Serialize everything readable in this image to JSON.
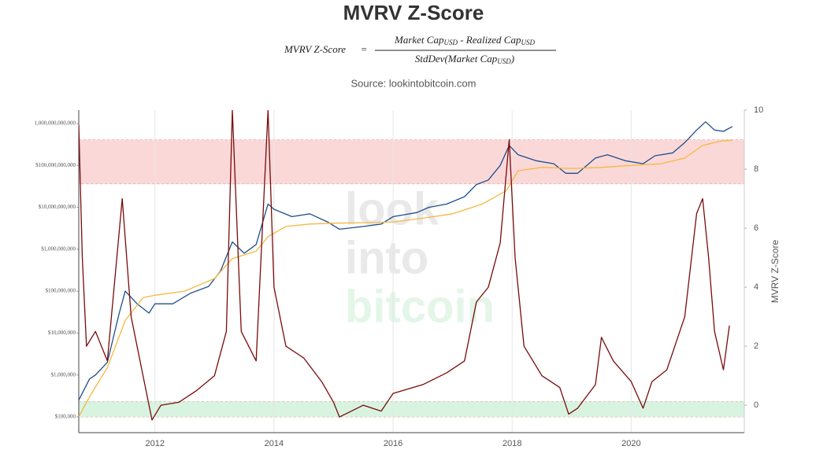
{
  "chart_data": {
    "type": "line",
    "title": "MVRV Z-Score",
    "formula": {
      "lhs": "MVRV Z-Score",
      "equals": "=",
      "numerator": [
        "Market Cap",
        "USD",
        " - Realized Cap",
        "USD"
      ],
      "denominator": [
        "StdDev(Market Cap",
        "USD",
        ")"
      ]
    },
    "subtitle": "Source: lookintobitcoin.com",
    "watermark": [
      "look",
      "into",
      "bitcoin"
    ],
    "y2_label": "MVRV Z-Score",
    "xlim": [
      2010.72,
      2021.9
    ],
    "xticks": [
      2012,
      2014,
      2016,
      2018,
      2020
    ],
    "ylog": true,
    "ylim": [
      42000,
      2090000000000
    ],
    "yticks": [
      {
        "value": 100000,
        "label": "$100,000"
      },
      {
        "value": 1000000,
        "label": "$1,000,000"
      },
      {
        "value": 10000000,
        "label": "$10,000,000"
      },
      {
        "value": 100000000,
        "label": "$100,000,000"
      },
      {
        "value": 1000000000,
        "label": "$1,000,000,000"
      },
      {
        "value": 10000000000,
        "label": "$10,000,000,000"
      },
      {
        "value": 100000000000,
        "label": "$100,000,000,000"
      },
      {
        "value": 1000000000000,
        "label": "1,000,000,000,000"
      }
    ],
    "y2lim": [
      -0.93,
      10
    ],
    "y2ticks": [
      0,
      2,
      4,
      6,
      8,
      10
    ],
    "grid": true,
    "bands": [
      {
        "from": 7.5,
        "to": 9,
        "color": "#f8c8c8",
        "axis": "y2"
      },
      {
        "from": -0.4,
        "to": 0.13,
        "color": "#c8f0d4",
        "axis": "y2"
      }
    ],
    "series": [
      {
        "color": "#1f4e8c",
        "x": [
          2010.72,
          2010.9,
          2011.0,
          2011.2,
          2011.4,
          2011.5,
          2011.7,
          2011.9,
          2012.0,
          2012.3,
          2012.6,
          2012.9,
          2013.1,
          2013.3,
          2013.5,
          2013.7,
          2013.9,
          2014.0,
          2014.3,
          2014.6,
          2014.9,
          2015.1,
          2015.5,
          2015.8,
          2016.0,
          2016.4,
          2016.6,
          2016.9,
          2017.2,
          2017.4,
          2017.6,
          2017.8,
          2017.95,
          2018.1,
          2018.4,
          2018.7,
          2018.9,
          2019.1,
          2019.4,
          2019.6,
          2019.9,
          2020.2,
          2020.4,
          2020.7,
          2020.9,
          2021.1,
          2021.25,
          2021.4,
          2021.55,
          2021.7
        ],
        "values": [
          250000,
          800000,
          1000000,
          2000000,
          30000000,
          100000000,
          50000000,
          30000000,
          50000000,
          50000000,
          90000000,
          130000000,
          300000000,
          1500000000,
          800000000,
          1300000000,
          12000000000,
          9000000000,
          6000000000,
          7000000000,
          4500000000,
          3000000000,
          3500000000,
          4000000000,
          6000000000,
          7500000000,
          10000000000,
          12000000000,
          18000000000,
          35000000000,
          45000000000,
          100000000000,
          300000000000,
          180000000000,
          130000000000,
          110000000000,
          65000000000,
          65000000000,
          150000000000,
          180000000000,
          130000000000,
          110000000000,
          170000000000,
          200000000000,
          350000000000,
          700000000000,
          1100000000000,
          700000000000,
          650000000000,
          850000000000
        ]
      },
      {
        "color": "#f5b841",
        "x": [
          2010.72,
          2010.9,
          2011.2,
          2011.5,
          2011.8,
          2012.0,
          2012.5,
          2013.0,
          2013.3,
          2013.7,
          2013.9,
          2014.2,
          2014.6,
          2015.0,
          2015.5,
          2016.0,
          2016.5,
          2017.0,
          2017.5,
          2017.9,
          2018.1,
          2018.5,
          2019.0,
          2019.5,
          2020.0,
          2020.5,
          2020.9,
          2021.2,
          2021.5,
          2021.7
        ],
        "values": [
          100000,
          300000,
          1500000,
          20000000,
          70000000,
          80000000,
          100000000,
          200000000,
          600000000,
          900000000,
          2000000000,
          3500000000,
          4000000000,
          4200000000,
          4300000000,
          4500000000,
          5500000000,
          7000000000,
          12000000000,
          25000000000,
          75000000000,
          90000000000,
          85000000000,
          90000000000,
          100000000000,
          110000000000,
          150000000000,
          300000000000,
          380000000000,
          400000000000
        ]
      },
      {
        "color": "#7a0a0a",
        "axis": "y2",
        "x": [
          2010.72,
          2010.78,
          2010.85,
          2011.0,
          2011.2,
          2011.45,
          2011.6,
          2011.8,
          2011.95,
          2012.1,
          2012.4,
          2012.7,
          2013.0,
          2013.2,
          2013.3,
          2013.45,
          2013.7,
          2013.9,
          2014.0,
          2014.2,
          2014.5,
          2014.8,
          2015.0,
          2015.1,
          2015.5,
          2015.8,
          2016.0,
          2016.5,
          2016.9,
          2017.2,
          2017.4,
          2017.6,
          2017.8,
          2017.95,
          2018.05,
          2018.2,
          2018.5,
          2018.8,
          2018.95,
          2019.1,
          2019.4,
          2019.5,
          2019.7,
          2020.0,
          2020.2,
          2020.35,
          2020.6,
          2020.9,
          2021.1,
          2021.2,
          2021.3,
          2021.4,
          2021.55,
          2021.65
        ],
        "values": [
          9.5,
          5,
          2,
          2.5,
          1.5,
          7,
          3,
          1,
          -0.5,
          0,
          0.1,
          0.5,
          1,
          2.5,
          10,
          2.5,
          1.5,
          10,
          4,
          2,
          1.6,
          0.8,
          0.1,
          -0.4,
          0,
          -0.2,
          0.4,
          0.7,
          1.1,
          1.5,
          3.5,
          4,
          5.5,
          9,
          5,
          2,
          1,
          0.6,
          -0.3,
          -0.1,
          0.7,
          2.3,
          1.5,
          0.8,
          -0.1,
          0.8,
          1.2,
          3,
          6.5,
          7,
          5,
          2.5,
          1.2,
          2.7
        ]
      }
    ]
  }
}
